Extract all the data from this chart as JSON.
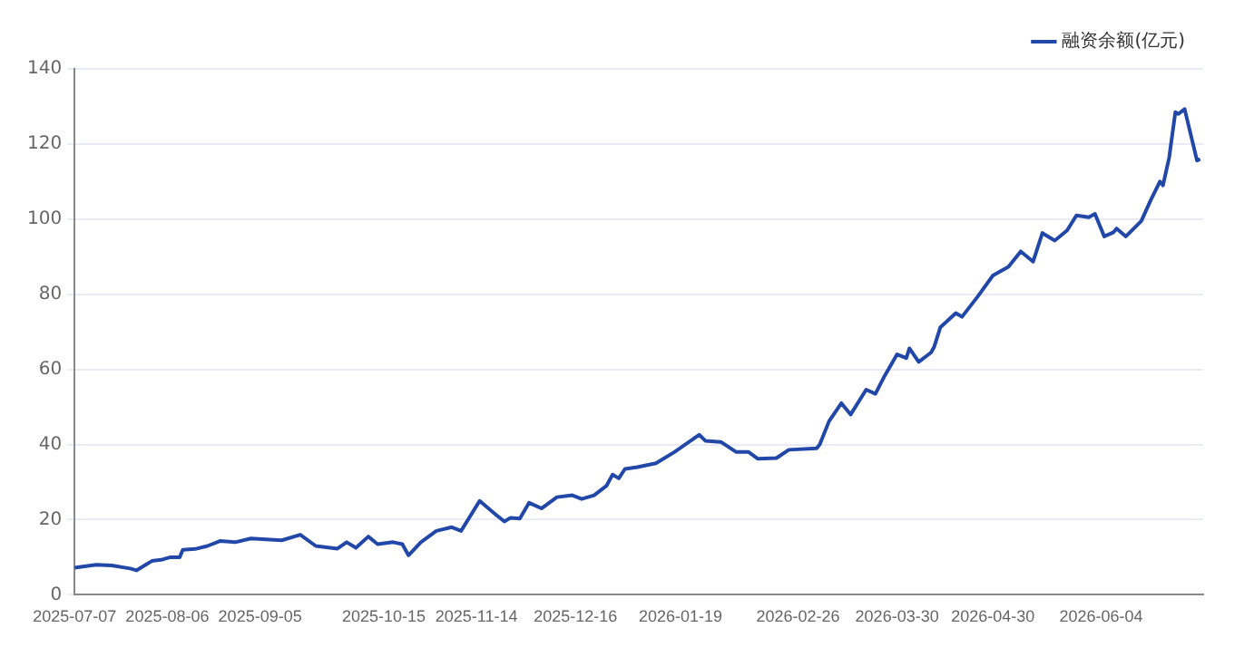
{
  "chart_data": {
    "type": "line",
    "legend": "top right",
    "grid": "y",
    "marker": "none",
    "line_style": "solid",
    "xlim": [
      "2025-07-07",
      "2026-07-07"
    ],
    "xticks": [
      "2025-07-07",
      "2025-08-06",
      "2025-09-05",
      "2025-10-15",
      "2025-11-14",
      "2025-12-16",
      "2026-01-19",
      "2026-02-26",
      "2026-03-30",
      "2026-04-30",
      "2026-06-04"
    ],
    "ylim": [
      0,
      140
    ],
    "yticks": [
      0,
      20,
      40,
      60,
      80,
      100,
      120,
      140
    ],
    "x": [
      "2025-07-07",
      "2025-07-14",
      "2025-07-19",
      "2025-07-25",
      "2025-07-27",
      "2025-07-30",
      "2025-08-01",
      "2025-08-04",
      "2025-08-07",
      "2025-08-10",
      "2025-08-11",
      "2025-08-15",
      "2025-08-19",
      "2025-08-23",
      "2025-08-28",
      "2025-09-02",
      "2025-09-12",
      "2025-09-18",
      "2025-09-23",
      "2025-09-30",
      "2025-10-03",
      "2025-10-06",
      "2025-10-10",
      "2025-10-13",
      "2025-10-18",
      "2025-10-21",
      "2025-10-23",
      "2025-10-27",
      "2025-11-01",
      "2025-11-06",
      "2025-11-09",
      "2025-11-15",
      "2025-11-20",
      "2025-11-23",
      "2025-11-25",
      "2025-11-28",
      "2025-12-01",
      "2025-12-05",
      "2025-12-10",
      "2025-12-15",
      "2025-12-18",
      "2025-12-22",
      "2025-12-26",
      "2025-12-28",
      "2025-12-30",
      "2026-01-01",
      "2026-01-05",
      "2026-01-11",
      "2026-01-17",
      "2026-01-25",
      "2026-01-27",
      "2026-02-01",
      "2026-02-06",
      "2026-02-10",
      "2026-02-13",
      "2026-02-19",
      "2026-02-23",
      "2026-03-04",
      "2026-03-05",
      "2026-03-08",
      "2026-03-12",
      "2026-03-15",
      "2026-03-20",
      "2026-03-23",
      "2026-03-26",
      "2026-03-30",
      "2026-04-02",
      "2026-04-03",
      "2026-04-06",
      "2026-04-10",
      "2026-04-11",
      "2026-04-13",
      "2026-04-18",
      "2026-04-20",
      "2026-04-25",
      "2026-04-30",
      "2026-05-05",
      "2026-05-09",
      "2026-05-13",
      "2026-05-16",
      "2026-05-20",
      "2026-05-24",
      "2026-05-27",
      "2026-05-31",
      "2026-06-02",
      "2026-06-05",
      "2026-06-08",
      "2026-06-09",
      "2026-06-12",
      "2026-06-17",
      "2026-06-20",
      "2026-06-23",
      "2026-06-24",
      "2026-06-26",
      "2026-06-28",
      "2026-06-29",
      "2026-07-01",
      "2026-07-05",
      "2026-07-06"
    ],
    "series": [
      {
        "name": "融资余额(亿元)",
        "color": "#2147a8",
        "values": [
          7.2,
          8,
          7.8,
          7,
          6.5,
          8,
          9,
          9.3,
          10,
          10,
          12,
          12.2,
          13,
          14.3,
          14,
          15,
          14.5,
          16,
          13,
          12.3,
          14,
          12.5,
          15.5,
          13.5,
          14,
          13.5,
          10.5,
          14,
          17,
          18,
          17,
          25,
          21.5,
          19.5,
          20.5,
          20.3,
          24.5,
          23,
          26,
          26.5,
          25.5,
          26.5,
          29,
          32,
          31,
          33.5,
          34,
          35,
          38,
          42.6,
          41,
          40.7,
          38,
          38,
          36.2,
          36.4,
          38.6,
          39,
          40,
          46.2,
          51,
          48,
          54.6,
          53.5,
          58.3,
          64,
          63,
          65.6,
          62,
          64.5,
          66,
          71.2,
          75,
          74,
          79.3,
          85,
          87.3,
          91.4,
          88.7,
          96.3,
          94.3,
          97,
          101,
          100.5,
          101.4,
          95.4,
          96.5,
          97.5,
          95.4,
          99.5,
          105,
          110,
          109,
          116.4,
          128.5,
          128,
          129.3,
          115.6,
          116
        ]
      }
    ]
  }
}
